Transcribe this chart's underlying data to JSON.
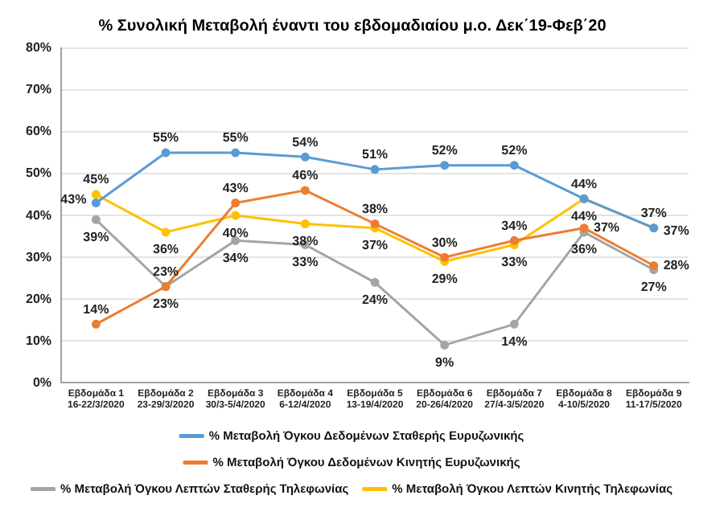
{
  "chart_data": {
    "type": "line",
    "title": "% Συνολική Μεταβολή έναντι του εβδομαδιαίου μ.ο. Δεκ΄19-Φεβ΄20",
    "categories": [
      "Εβδομάδα 1\n16-22/3/2020",
      "Εβδομάδα 2\n23-29/3/2020",
      "Εβδομάδα 3\n30/3-5/4/2020",
      "Εβδομάδα 4\n6-12/4/2020",
      "Εβδομάδα 5\n13-19/4/2020",
      "Εβδομάδα 6\n20-26/4/2020",
      "Εβδομάδα 7\n27/4-3/5/2020",
      "Εβδομάδα 8\n4-10/5/2020",
      "Εβδομάδα 9\n11-17/5/2020"
    ],
    "series": [
      {
        "name": "% Μεταβολή Όγκου Δεδομένων Σταθερής Ευρυζωνικής",
        "color": "#5b9bd5",
        "values": [
          43,
          55,
          55,
          54,
          51,
          52,
          52,
          44,
          37
        ],
        "value_labels": [
          "43%",
          "55%",
          "55%",
          "54%",
          "51%",
          "52%",
          "52%",
          "44%",
          "37%"
        ]
      },
      {
        "name": "% Μεταβολή Όγκου Δεδομένων Κινητής Ευρυζωνικής",
        "color": "#ed7d31",
        "values": [
          14,
          23,
          43,
          46,
          38,
          30,
          34,
          37,
          28
        ],
        "value_labels": [
          "14%",
          "23%",
          "43%",
          "46%",
          "38%",
          "30%",
          "34%",
          "37%",
          "28%"
        ]
      },
      {
        "name": "% Μεταβολή Όγκου Λεπτών Σταθερής Τηλεφωνίας",
        "color": "#a5a5a5",
        "values": [
          39,
          23,
          34,
          33,
          24,
          9,
          14,
          36,
          27
        ],
        "value_labels": [
          "39%",
          "23%",
          "34%",
          "33%",
          "24%",
          "9%",
          "14%",
          "36%",
          "27%"
        ]
      },
      {
        "name": "% Μεταβολή Όγκου Λεπτών Κινητής Τηλεφωνίας",
        "color": "#ffc000",
        "values": [
          45,
          36,
          40,
          38,
          37,
          29,
          33,
          44,
          37
        ],
        "value_labels": [
          "45%",
          "36%",
          "40%",
          "38%",
          "37%",
          "29%",
          "33%",
          "44%",
          "37%"
        ]
      }
    ],
    "ylim": [
      0,
      80
    ],
    "yticks": [
      {
        "value": 0,
        "label": "0%"
      },
      {
        "value": 10,
        "label": "10%"
      },
      {
        "value": 20,
        "label": "20%"
      },
      {
        "value": 30,
        "label": "30%"
      },
      {
        "value": 40,
        "label": "40%"
      },
      {
        "value": 50,
        "label": "50%"
      },
      {
        "value": 60,
        "label": "60%"
      },
      {
        "value": 70,
        "label": "70%"
      },
      {
        "value": 80,
        "label": "80%"
      }
    ],
    "grid": "y",
    "legend": "bottom",
    "marker": "circle",
    "line_style": "solid"
  }
}
